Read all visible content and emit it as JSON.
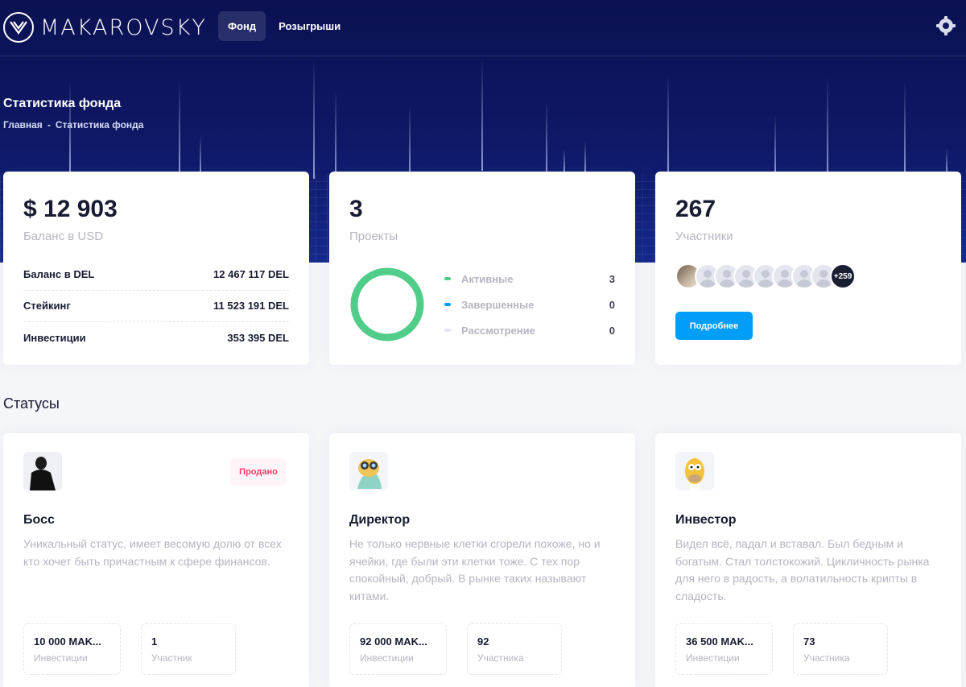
{
  "header": {
    "brand": "MAKAROVSKY",
    "nav": [
      {
        "label": "Фонд",
        "active": true
      },
      {
        "label": "Розыгрыши",
        "active": false
      }
    ],
    "settings_icon": "gear-icon"
  },
  "hero": {
    "title": "Статистика фонда",
    "breadcrumb": [
      "Главная",
      "-",
      "Статистика фонда"
    ]
  },
  "balance_card": {
    "value": "$ 12 903",
    "label": "Баланс в USD",
    "rows": [
      {
        "label": "Баланс в DEL",
        "value": "12 467 117 DEL"
      },
      {
        "label": "Стейкинг",
        "value": "11 523 191 DEL"
      },
      {
        "label": "Инвестиции",
        "value": "353 395 DEL"
      }
    ]
  },
  "projects_card": {
    "value": "3",
    "label": "Проекты",
    "legend": [
      {
        "label": "Активные",
        "value": "3",
        "color": "#50cd89"
      },
      {
        "label": "Завершенные",
        "value": "0",
        "color": "#009ef7"
      },
      {
        "label": "Рассмотрение",
        "value": "0",
        "color": "#e4e6ef"
      }
    ],
    "donut_color": "#50cd89"
  },
  "members_card": {
    "value": "267",
    "label": "Участники",
    "more_badge": "+259",
    "button": "Подробнее"
  },
  "statuses": {
    "title": "Статусы",
    "items": [
      {
        "name": "Босс",
        "badge": "Продано",
        "description": "Уникальный статус, имеет весомую долю от всех кто хочет быть причастным к сфере финансов.",
        "invest_value": "10 000 MAK...",
        "invest_label": "Инвестиции",
        "members_value": "1",
        "members_label": "Участник"
      },
      {
        "name": "Директор",
        "badge": "",
        "description": "Не только нервные клетки сгорели похоже, но и ячейки, где были эти клетки тоже. С тех пор спокойный, добрый. В рынке таких называют китами.",
        "invest_value": "92 000 MAK...",
        "invest_label": "Инвестиции",
        "members_value": "92",
        "members_label": "Участника"
      },
      {
        "name": "Инвестор",
        "badge": "",
        "description": "Видел всё, падал и вставал. Был бедным и богатым. Стал толстокожий. Цикличность рынка для него в радость, а волатильность крипты в сладость.",
        "invest_value": "36 500 MAK...",
        "invest_label": "Инвестиции",
        "members_value": "73",
        "members_label": "Участника"
      }
    ]
  }
}
